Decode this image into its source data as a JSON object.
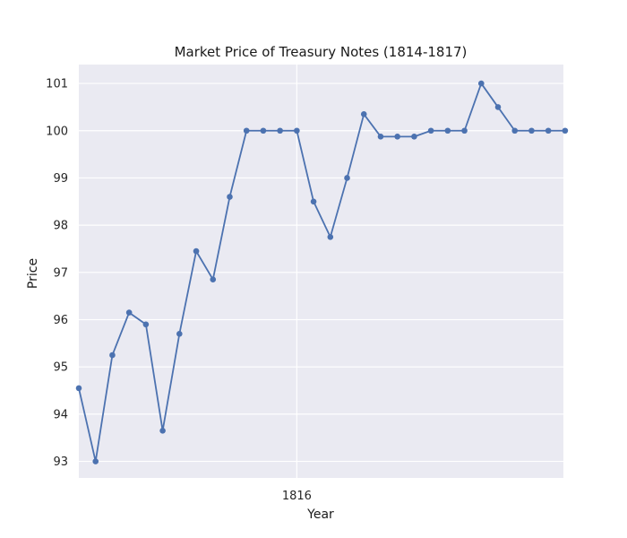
{
  "chart_data": {
    "type": "line",
    "title": "Market Price of Treasury Notes (1814-1817)",
    "xlabel": "Year",
    "ylabel": "Price",
    "ylim": [
      92.65,
      101.4
    ],
    "yticks": [
      93,
      94,
      95,
      96,
      97,
      98,
      99,
      100,
      101
    ],
    "xticks": [
      {
        "label": "1816",
        "index": 13
      }
    ],
    "grid": true,
    "series": [
      {
        "color": "#4c72b0",
        "values": [
          94.55,
          93.0,
          95.25,
          96.15,
          95.9,
          93.65,
          95.7,
          97.45,
          96.85,
          98.6,
          100.0,
          100.0,
          100.0,
          100.0,
          98.5,
          97.75,
          99.0,
          100.35,
          99.875,
          99.875,
          99.875,
          100.0,
          100.0,
          100.0,
          101.0,
          100.5,
          100.0,
          100.0,
          100.0,
          100.0
        ]
      }
    ]
  }
}
